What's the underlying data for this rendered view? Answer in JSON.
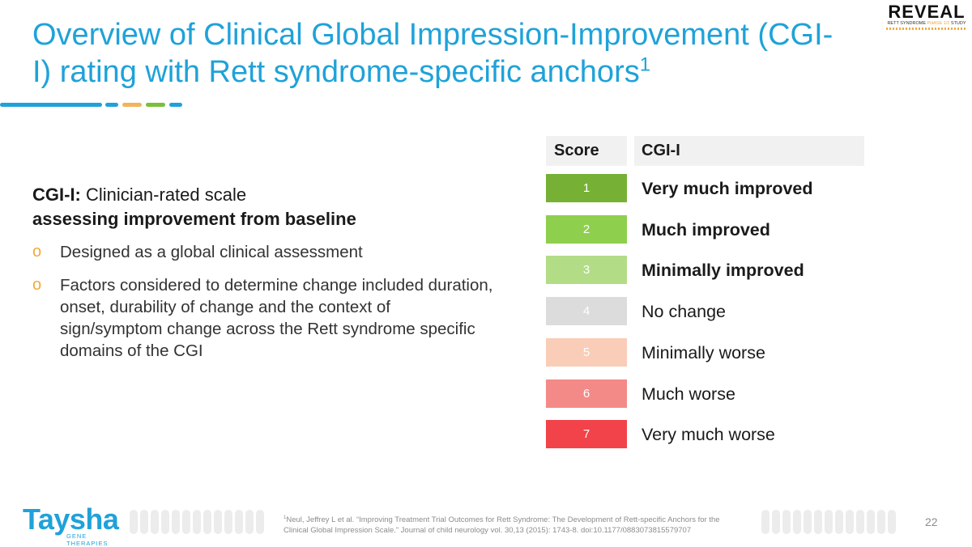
{
  "slide": {
    "title_main": "Overview of Clinical Global Impression-Improvement (CGI-I) rating with Rett syndrome-specific anchors",
    "title_sup": "1",
    "accent_colors": {
      "title": "#1fa2d9",
      "rule_blue": "#1fa2d9",
      "rule_orange": "#f2b45a",
      "rule_green": "#7cbf3a",
      "bullet": "#f2a93b"
    }
  },
  "brand": {
    "reveal_name": "REVEAL",
    "reveal_sub_a": "RETT SYNDROME",
    "reveal_sub_b": "PHASE 1/2",
    "reveal_sub_c": "STUDY",
    "company_name": "Taysha",
    "company_sub": "GENE THERAPIES"
  },
  "left": {
    "lead_term": "CGI-I:",
    "lead_rest": "Clinician-rated scale",
    "lead_emphasis": "assessing improvement from baseline",
    "bullets": [
      "Designed as a global clinical assessment",
      "Factors considered to determine change included duration, onset, durability of change and the context of sign/symptom change across the Rett syndrome specific domains of the CGI"
    ],
    "bullet_marker": "o"
  },
  "table": {
    "header_score": "Score",
    "header_cgi": "CGI-I",
    "rows": [
      {
        "score": "1",
        "label": "Very much improved",
        "color": "#76b136",
        "bold": true
      },
      {
        "score": "2",
        "label": "Much improved",
        "color": "#8fcf4e",
        "bold": true
      },
      {
        "score": "3",
        "label": "Minimally improved",
        "color": "#b3dc87",
        "bold": true
      },
      {
        "score": "4",
        "label": "No change",
        "color": "#dcdcdc",
        "bold": false
      },
      {
        "score": "5",
        "label": "Minimally worse",
        "color": "#f9cdb8",
        "bold": false
      },
      {
        "score": "6",
        "label": "Much worse",
        "color": "#f38a87",
        "bold": false
      },
      {
        "score": "7",
        "label": "Very much worse",
        "color": "#f2424a",
        "bold": false
      }
    ]
  },
  "footer": {
    "citation_sup": "1",
    "citation": "Neul, Jeffrey L et al. “Improving Treatment Trial Outcomes for Rett Syndrome: The Development of Rett-specific Anchors for the Clinical Global Impression Scale.” Journal of child neurology vol. 30,13 (2015): 1743-8. doi:10.1177/0883073815579707",
    "page_number": "22"
  }
}
